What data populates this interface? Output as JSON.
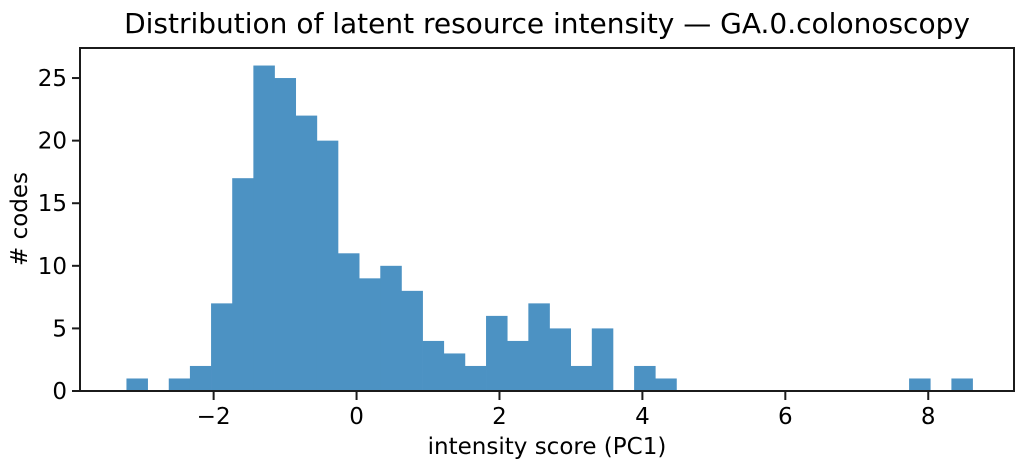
{
  "chart_data": {
    "type": "bar",
    "subtype": "histogram",
    "title": "Distribution of latent resource intensity — GA.0.colonoscopy",
    "xlabel": "intensity score (PC1)",
    "ylabel": "# codes",
    "bin_edges": [
      -3.22,
      -2.924,
      -2.628,
      -2.332,
      -2.036,
      -1.74,
      -1.444,
      -1.148,
      -0.852,
      -0.556,
      -0.26,
      0.036,
      0.332,
      0.628,
      0.924,
      1.22,
      1.516,
      1.812,
      2.108,
      2.404,
      2.7,
      2.996,
      3.292,
      3.588,
      3.884,
      4.18,
      4.476,
      4.772,
      5.068,
      5.364,
      5.66,
      5.956,
      6.252,
      6.548,
      6.844,
      7.14,
      7.436,
      7.732,
      8.028,
      8.324,
      8.62
    ],
    "counts": [
      1,
      0,
      1,
      2,
      7,
      17,
      26,
      25,
      22,
      20,
      11,
      9,
      10,
      8,
      4,
      3,
      2,
      6,
      4,
      7,
      5,
      2,
      5,
      0,
      2,
      1,
      0,
      0,
      0,
      0,
      0,
      0,
      0,
      0,
      0,
      0,
      0,
      1,
      0,
      1
    ],
    "total_codes": 202,
    "xlim": [
      -3.87,
      9.2
    ],
    "ylim": [
      0,
      27.4
    ],
    "x_ticks": [
      {
        "value": -2,
        "label": "−2"
      },
      {
        "value": 0,
        "label": "0"
      },
      {
        "value": 2,
        "label": "2"
      },
      {
        "value": 4,
        "label": "4"
      },
      {
        "value": 6,
        "label": "6"
      },
      {
        "value": 8,
        "label": "8"
      }
    ],
    "y_ticks": [
      {
        "value": 0,
        "label": "0"
      },
      {
        "value": 5,
        "label": "5"
      },
      {
        "value": 10,
        "label": "10"
      },
      {
        "value": 15,
        "label": "15"
      },
      {
        "value": 20,
        "label": "20"
      },
      {
        "value": 25,
        "label": "25"
      }
    ],
    "bar_color": "#4C92C3",
    "axis_color": "#1b1b1b",
    "background_color": "#ffffff",
    "grid": false,
    "legend": false
  }
}
